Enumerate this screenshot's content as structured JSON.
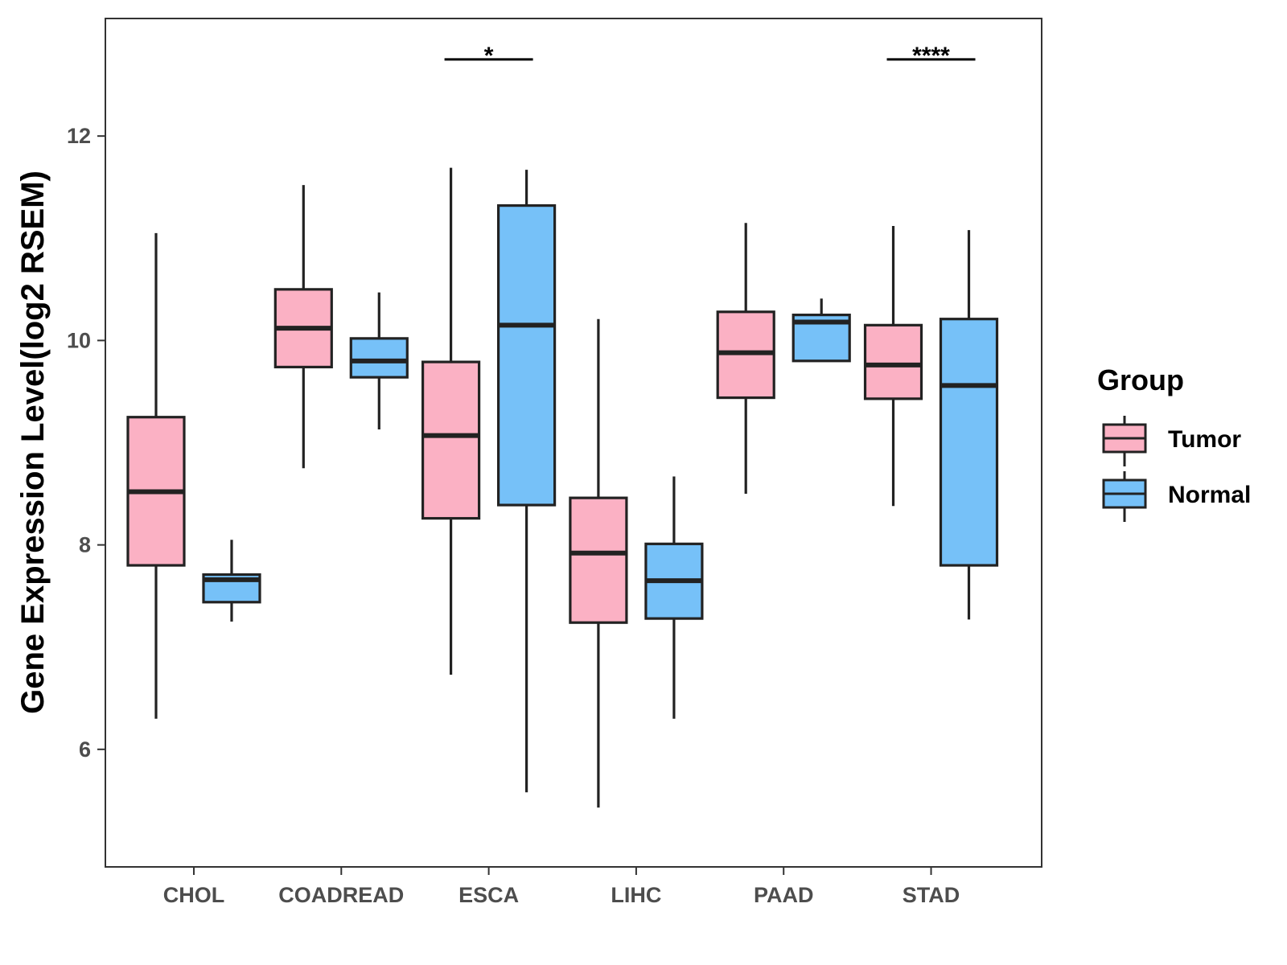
{
  "chart_data": {
    "type": "boxplot",
    "title": "",
    "xlabel": "",
    "ylabel": "Gene Expression Level(log2 RSEM)",
    "ylim": [
      4.85,
      13.15
    ],
    "yticks": [
      6,
      8,
      10,
      12
    ],
    "grid": false,
    "legend_position": "right",
    "legend": {
      "title": "Group",
      "entries": [
        {
          "name": "Tumor",
          "color": "#FBB1C4"
        },
        {
          "name": "Normal",
          "color": "#76C1F8"
        }
      ]
    },
    "categories": [
      "CHOL",
      "COADREAD",
      "ESCA",
      "LIHC",
      "PAAD",
      "STAD"
    ],
    "series": [
      {
        "name": "Tumor",
        "color": "#FBB1C4",
        "boxes": [
          {
            "min": 6.3,
            "q1": 7.8,
            "median": 8.52,
            "q3": 9.25,
            "max": 11.05
          },
          {
            "min": 8.75,
            "q1": 9.74,
            "median": 10.12,
            "q3": 10.5,
            "max": 11.52
          },
          {
            "min": 6.73,
            "q1": 8.26,
            "median": 9.07,
            "q3": 9.79,
            "max": 11.69
          },
          {
            "min": 5.43,
            "q1": 7.24,
            "median": 7.92,
            "q3": 8.46,
            "max": 10.21
          },
          {
            "min": 8.5,
            "q1": 9.44,
            "median": 9.88,
            "q3": 10.28,
            "max": 11.15
          },
          {
            "min": 8.38,
            "q1": 9.43,
            "median": 9.76,
            "q3": 10.15,
            "max": 11.12
          }
        ]
      },
      {
        "name": "Normal",
        "color": "#76C1F8",
        "boxes": [
          {
            "min": 7.25,
            "q1": 7.44,
            "median": 7.66,
            "q3": 7.71,
            "max": 8.05
          },
          {
            "min": 9.13,
            "q1": 9.64,
            "median": 9.8,
            "q3": 10.02,
            "max": 10.47
          },
          {
            "min": 5.58,
            "q1": 8.39,
            "median": 10.15,
            "q3": 11.32,
            "max": 11.67
          },
          {
            "min": 6.3,
            "q1": 7.28,
            "median": 7.65,
            "q3": 8.01,
            "max": 8.67
          },
          {
            "min": 9.8,
            "q1": 9.8,
            "median": 10.18,
            "q3": 10.25,
            "max": 10.41
          },
          {
            "min": 7.27,
            "q1": 7.8,
            "median": 9.56,
            "q3": 10.21,
            "max": 11.08
          }
        ]
      }
    ],
    "annotations": [
      {
        "category": "ESCA",
        "label": "*"
      },
      {
        "category": "STAD",
        "label": "****"
      }
    ]
  }
}
